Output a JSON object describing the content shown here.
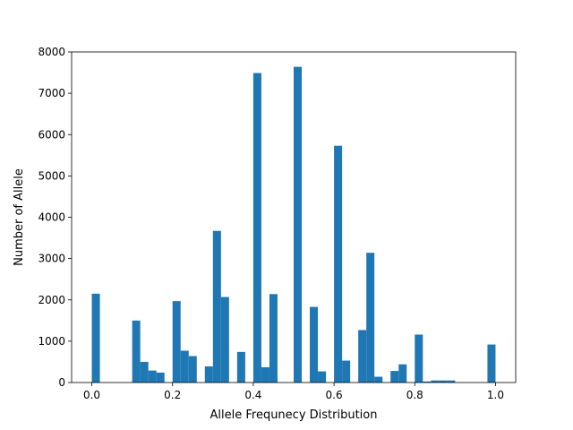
{
  "chart_data": {
    "type": "bar",
    "xlabel": "Allele Frequnecy Distribution",
    "ylabel": "Number of Allele",
    "xlim": [
      -0.05,
      1.05
    ],
    "ylim": [
      0,
      8000
    ],
    "bin_width": 0.02,
    "bar_color": "#1f77b4",
    "grid": false,
    "x_ticks": [
      {
        "value": 0.0,
        "label": "0.0"
      },
      {
        "value": 0.2,
        "label": "0.2"
      },
      {
        "value": 0.4,
        "label": "0.4"
      },
      {
        "value": 0.6,
        "label": "0.6"
      },
      {
        "value": 0.8,
        "label": "0.8"
      },
      {
        "value": 1.0,
        "label": "1.0"
      }
    ],
    "y_ticks": [
      {
        "value": 0,
        "label": "0"
      },
      {
        "value": 1000,
        "label": "1000"
      },
      {
        "value": 2000,
        "label": "2000"
      },
      {
        "value": 3000,
        "label": "3000"
      },
      {
        "value": 4000,
        "label": "4000"
      },
      {
        "value": 5000,
        "label": "5000"
      },
      {
        "value": 6000,
        "label": "6000"
      },
      {
        "value": 7000,
        "label": "7000"
      },
      {
        "value": 8000,
        "label": "8000"
      }
    ],
    "bins": [
      {
        "x": 0.0,
        "count": 2150
      },
      {
        "x": 0.1,
        "count": 1500
      },
      {
        "x": 0.12,
        "count": 500
      },
      {
        "x": 0.14,
        "count": 290
      },
      {
        "x": 0.16,
        "count": 240
      },
      {
        "x": 0.2,
        "count": 1970
      },
      {
        "x": 0.22,
        "count": 770
      },
      {
        "x": 0.24,
        "count": 640
      },
      {
        "x": 0.28,
        "count": 390
      },
      {
        "x": 0.3,
        "count": 3670
      },
      {
        "x": 0.32,
        "count": 2070
      },
      {
        "x": 0.36,
        "count": 740
      },
      {
        "x": 0.4,
        "count": 7490
      },
      {
        "x": 0.42,
        "count": 370
      },
      {
        "x": 0.44,
        "count": 2140
      },
      {
        "x": 0.5,
        "count": 7640
      },
      {
        "x": 0.54,
        "count": 1830
      },
      {
        "x": 0.56,
        "count": 270
      },
      {
        "x": 0.6,
        "count": 5730
      },
      {
        "x": 0.62,
        "count": 530
      },
      {
        "x": 0.66,
        "count": 1270
      },
      {
        "x": 0.68,
        "count": 3140
      },
      {
        "x": 0.7,
        "count": 140
      },
      {
        "x": 0.74,
        "count": 280
      },
      {
        "x": 0.76,
        "count": 440
      },
      {
        "x": 0.8,
        "count": 1160
      },
      {
        "x": 0.82,
        "count": 25
      },
      {
        "x": 0.84,
        "count": 50
      },
      {
        "x": 0.86,
        "count": 50
      },
      {
        "x": 0.88,
        "count": 50
      },
      {
        "x": 0.98,
        "count": 920
      }
    ]
  }
}
